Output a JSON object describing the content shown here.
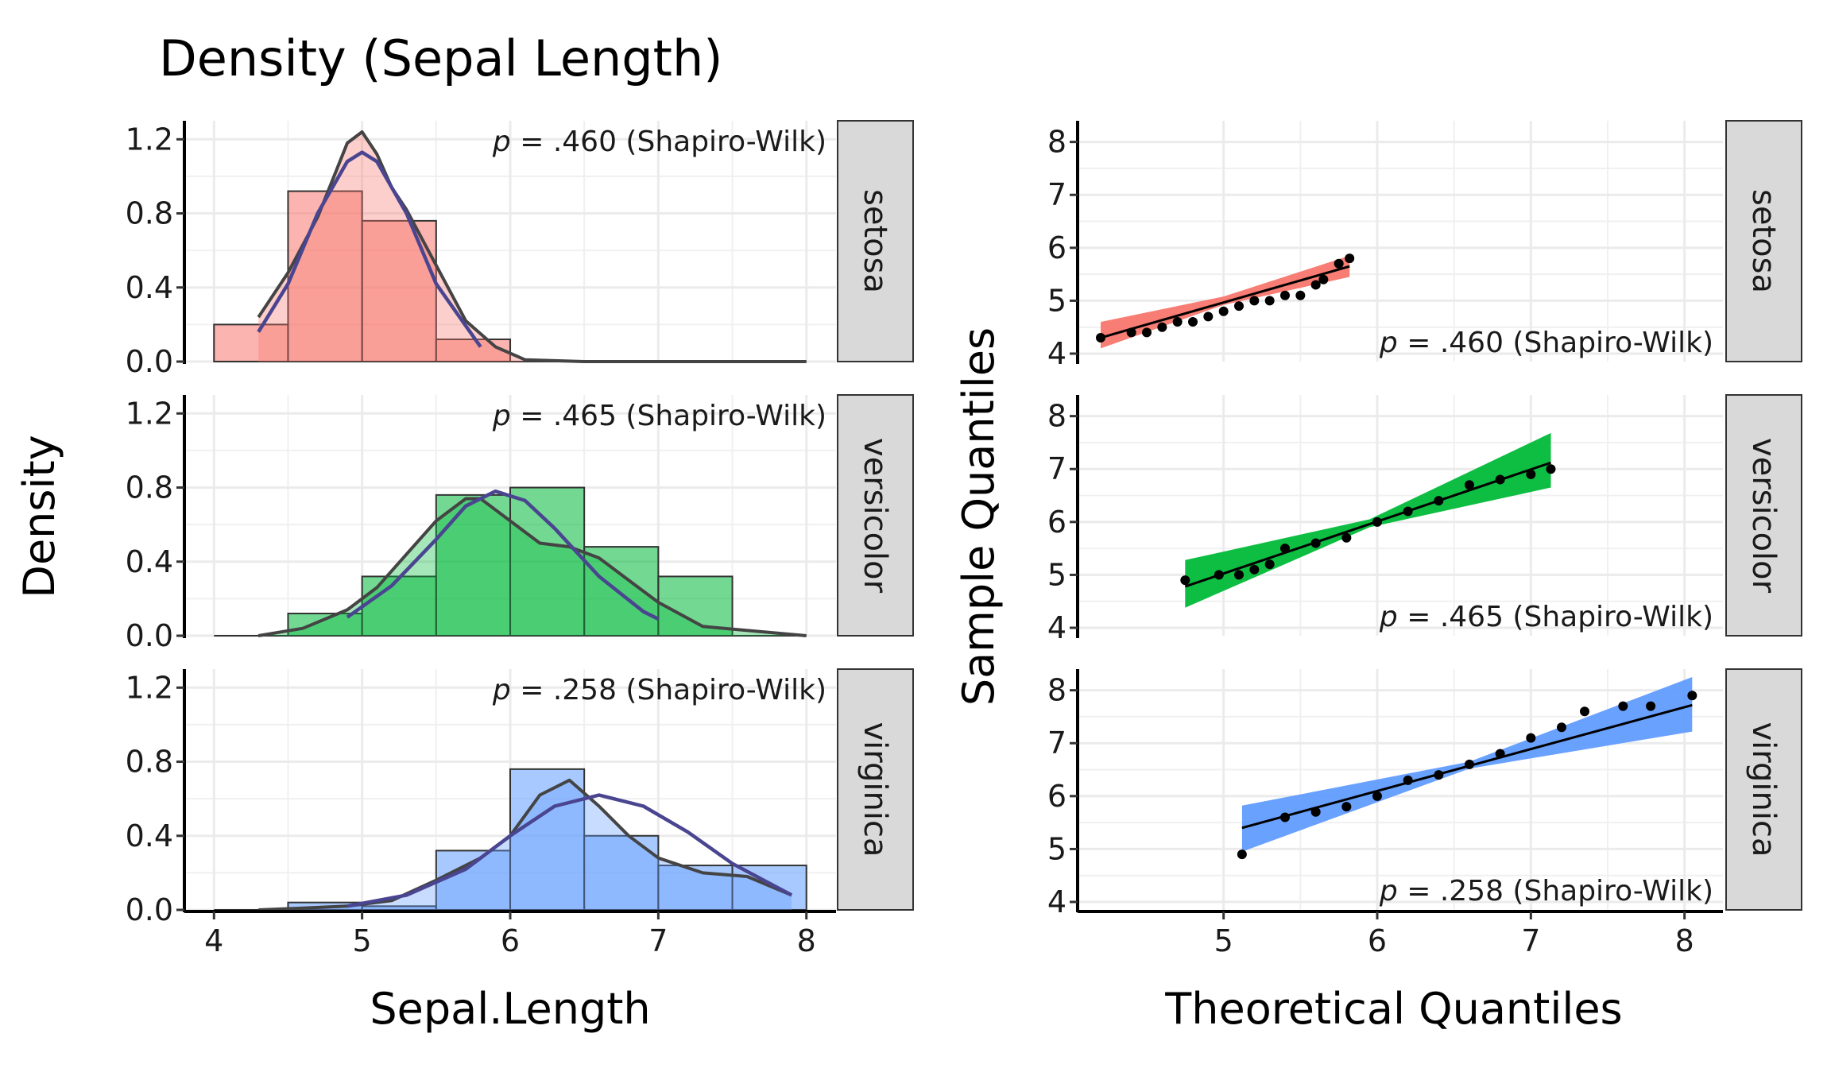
{
  "chart_data": [
    {
      "type": "bar",
      "title": "Density (Sepal Length)",
      "xlabel": "Sepal.Length",
      "ylabel": "Density",
      "xlim": [
        3.8,
        8.2
      ],
      "ylim": [
        0,
        1.3
      ],
      "x_ticks": [
        4,
        5,
        6,
        7,
        8
      ],
      "x_tick_labels": [
        "4",
        "5",
        "6",
        "7",
        "8"
      ],
      "y_ticks": [
        0,
        0.4,
        0.8,
        1.2
      ],
      "y_tick_labels": [
        "0.0",
        "0.4",
        "0.8",
        "1.2"
      ],
      "grid": true,
      "bin_edges": [
        4.0,
        4.5,
        5.0,
        5.5,
        6.0,
        6.5,
        7.0,
        7.5,
        8.0
      ],
      "panels": [
        {
          "name": "setosa",
          "color": "#F8766D",
          "annotation": ".460 (Shapiro-Wilk)",
          "histogram": [
            0.2,
            0.92,
            0.76,
            0.12,
            0,
            0,
            0,
            0
          ],
          "kde": {
            "x": [
              4.3,
              4.5,
              4.7,
              4.8,
              4.9,
              5.0,
              5.1,
              5.2,
              5.3,
              5.5,
              5.7,
              5.9,
              6.1,
              6.5,
              7.0,
              8.0
            ],
            "y": [
              0.24,
              0.48,
              0.78,
              0.98,
              1.18,
              1.24,
              1.12,
              0.94,
              0.82,
              0.52,
              0.22,
              0.08,
              0.01,
              0.0,
              0.0,
              0.0
            ]
          },
          "normal_fit": {
            "x": [
              4.3,
              4.5,
              4.7,
              4.9,
              5.0,
              5.1,
              5.3,
              5.5,
              5.8
            ],
            "y": [
              0.16,
              0.42,
              0.8,
              1.08,
              1.13,
              1.08,
              0.8,
              0.42,
              0.08
            ]
          }
        },
        {
          "name": "versicolor",
          "color": "#00BA38",
          "annotation": ".465 (Shapiro-Wilk)",
          "histogram": [
            0,
            0.12,
            0.32,
            0.76,
            0.8,
            0.48,
            0.32,
            0
          ],
          "kde": {
            "x": [
              4.3,
              4.6,
              4.9,
              5.1,
              5.3,
              5.5,
              5.7,
              5.8,
              6.0,
              6.2,
              6.4,
              6.6,
              6.8,
              7.0,
              7.3,
              8.0
            ],
            "y": [
              0.0,
              0.04,
              0.14,
              0.26,
              0.44,
              0.62,
              0.74,
              0.74,
              0.62,
              0.5,
              0.48,
              0.42,
              0.3,
              0.18,
              0.05,
              0.0
            ]
          },
          "normal_fit": {
            "x": [
              4.9,
              5.2,
              5.5,
              5.7,
              5.9,
              6.1,
              6.3,
              6.6,
              6.9,
              7.0
            ],
            "y": [
              0.1,
              0.27,
              0.52,
              0.7,
              0.78,
              0.73,
              0.58,
              0.32,
              0.13,
              0.09
            ]
          }
        },
        {
          "name": "virginica",
          "color": "#619CFF",
          "annotation": ".258 (Shapiro-Wilk)",
          "histogram": [
            0,
            0.04,
            0.02,
            0.32,
            0.76,
            0.4,
            0.24,
            0.24
          ],
          "kde": {
            "x": [
              4.3,
              4.6,
              4.9,
              5.2,
              5.5,
              5.8,
              6.0,
              6.2,
              6.4,
              6.6,
              6.8,
              7.0,
              7.3,
              7.6,
              7.9
            ],
            "y": [
              0.0,
              0.01,
              0.02,
              0.05,
              0.16,
              0.28,
              0.4,
              0.62,
              0.7,
              0.56,
              0.4,
              0.28,
              0.2,
              0.18,
              0.08
            ]
          },
          "normal_fit": {
            "x": [
              4.9,
              5.3,
              5.7,
              6.0,
              6.3,
              6.6,
              6.9,
              7.2,
              7.5,
              7.9
            ],
            "y": [
              0.02,
              0.08,
              0.22,
              0.4,
              0.56,
              0.62,
              0.56,
              0.42,
              0.25,
              0.08
            ]
          }
        }
      ]
    },
    {
      "type": "scatter",
      "title": "",
      "xlabel": "Theoretical Quantiles",
      "ylabel": "Sample Quantiles",
      "xlim": [
        4.05,
        8.25
      ],
      "ylim": [
        3.85,
        8.4
      ],
      "x_ticks": [
        5,
        6,
        7,
        8
      ],
      "x_tick_labels": [
        "5",
        "6",
        "7",
        "8"
      ],
      "y_ticks": [
        4,
        5,
        6,
        7,
        8
      ],
      "y_tick_labels": [
        "4",
        "5",
        "6",
        "7",
        "8"
      ],
      "grid": true,
      "panels": [
        {
          "name": "setosa",
          "color": "#F8766D",
          "annotation": ".460 (Shapiro-Wilk)",
          "points": [
            [
              4.2,
              4.3
            ],
            [
              4.4,
              4.4
            ],
            [
              4.5,
              4.4
            ],
            [
              4.6,
              4.5
            ],
            [
              4.7,
              4.6
            ],
            [
              4.8,
              4.6
            ],
            [
              4.9,
              4.7
            ],
            [
              5.0,
              4.8
            ],
            [
              5.1,
              4.9
            ],
            [
              5.2,
              5.0
            ],
            [
              5.3,
              5.0
            ],
            [
              5.4,
              5.1
            ],
            [
              5.5,
              5.1
            ],
            [
              5.6,
              5.3
            ],
            [
              5.65,
              5.4
            ],
            [
              5.75,
              5.7
            ],
            [
              5.82,
              5.8
            ]
          ],
          "fit_line": [
            [
              4.2,
              4.3
            ],
            [
              5.82,
              5.65
            ]
          ],
          "band_low": [
            [
              4.2,
              4.1
            ],
            [
              5.0,
              4.92
            ],
            [
              5.82,
              5.45
            ]
          ],
          "band_high": [
            [
              4.2,
              4.6
            ],
            [
              5.0,
              5.08
            ],
            [
              5.82,
              5.85
            ]
          ]
        },
        {
          "name": "versicolor",
          "color": "#00BA38",
          "annotation": ".465 (Shapiro-Wilk)",
          "points": [
            [
              4.75,
              4.9
            ],
            [
              4.97,
              5.0
            ],
            [
              5.1,
              5.0
            ],
            [
              5.2,
              5.1
            ],
            [
              5.3,
              5.2
            ],
            [
              5.4,
              5.5
            ],
            [
              5.6,
              5.6
            ],
            [
              5.8,
              5.7
            ],
            [
              6.0,
              6.0
            ],
            [
              6.2,
              6.2
            ],
            [
              6.4,
              6.4
            ],
            [
              6.6,
              6.7
            ],
            [
              6.8,
              6.8
            ],
            [
              7.0,
              6.9
            ],
            [
              7.13,
              7.0
            ]
          ],
          "fit_line": [
            [
              4.75,
              4.78
            ],
            [
              7.13,
              7.12
            ]
          ],
          "band_low": [
            [
              4.75,
              4.38
            ],
            [
              5.95,
              5.9
            ],
            [
              7.13,
              6.65
            ]
          ],
          "band_high": [
            [
              4.75,
              5.28
            ],
            [
              5.95,
              6.05
            ],
            [
              7.13,
              7.68
            ]
          ]
        },
        {
          "name": "virginica",
          "color": "#619CFF",
          "annotation": ".258 (Shapiro-Wilk)",
          "points": [
            [
              5.12,
              4.9
            ],
            [
              5.4,
              5.6
            ],
            [
              5.6,
              5.7
            ],
            [
              5.8,
              5.8
            ],
            [
              6.0,
              6.0
            ],
            [
              6.2,
              6.3
            ],
            [
              6.4,
              6.4
            ],
            [
              6.6,
              6.6
            ],
            [
              6.8,
              6.8
            ],
            [
              7.0,
              7.1
            ],
            [
              7.2,
              7.3
            ],
            [
              7.35,
              7.6
            ],
            [
              7.6,
              7.7
            ],
            [
              7.78,
              7.7
            ],
            [
              8.05,
              7.9
            ]
          ],
          "fit_line": [
            [
              5.12,
              5.4
            ],
            [
              8.05,
              7.72
            ]
          ],
          "band_low": [
            [
              5.12,
              4.95
            ],
            [
              6.6,
              6.52
            ],
            [
              8.05,
              7.22
            ]
          ],
          "band_high": [
            [
              5.12,
              5.82
            ],
            [
              6.6,
              6.65
            ],
            [
              8.05,
              8.25
            ]
          ]
        }
      ]
    }
  ]
}
